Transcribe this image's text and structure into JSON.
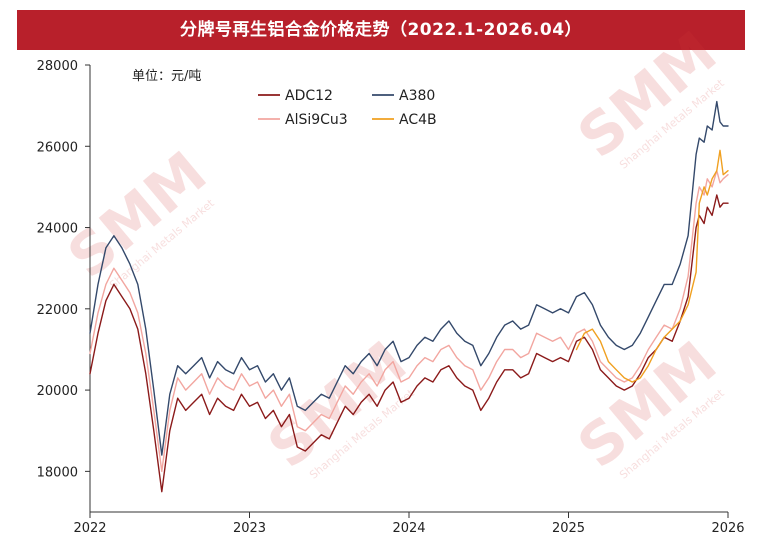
{
  "title": "分牌号再生铝合金价格走势（2022.1-2026.04）",
  "watermark": {
    "logo": "SMM",
    "subtitle": "Shanghai Metals Market",
    "color": "#d33a3a"
  },
  "chart_data": {
    "type": "line",
    "title": "分牌号再生铝合金价格走势（2022.1-2026.04）",
    "unit_label": "单位：元/吨",
    "xlabel": "",
    "ylabel": "",
    "x_ticks": [
      "2022",
      "2023",
      "2024",
      "2025",
      "2026"
    ],
    "y_ticks": [
      "18000",
      "20000",
      "22000",
      "24000",
      "26000",
      "28000"
    ],
    "xlim": [
      2022.0,
      2026.0
    ],
    "ylim": [
      17000,
      28000
    ],
    "grid": false,
    "legend_position": "top",
    "x": [
      2022.0,
      2022.05,
      2022.1,
      2022.15,
      2022.2,
      2022.25,
      2022.3,
      2022.35,
      2022.4,
      2022.45,
      2022.5,
      2022.55,
      2022.6,
      2022.65,
      2022.7,
      2022.75,
      2022.8,
      2022.85,
      2022.9,
      2022.95,
      2023.0,
      2023.05,
      2023.1,
      2023.15,
      2023.2,
      2023.25,
      2023.3,
      2023.35,
      2023.4,
      2023.45,
      2023.5,
      2023.55,
      2023.6,
      2023.65,
      2023.7,
      2023.75,
      2023.8,
      2023.85,
      2023.9,
      2023.95,
      2024.0,
      2024.05,
      2024.1,
      2024.15,
      2024.2,
      2024.25,
      2024.3,
      2024.35,
      2024.4,
      2024.45,
      2024.5,
      2024.55,
      2024.6,
      2024.65,
      2024.7,
      2024.75,
      2024.8,
      2024.85,
      2024.9,
      2024.95,
      2025.0,
      2025.05,
      2025.1,
      2025.15,
      2025.2,
      2025.25,
      2025.3,
      2025.35,
      2025.4,
      2025.45,
      2025.5,
      2025.55,
      2025.6,
      2025.65,
      2025.7,
      2025.75,
      2025.8,
      2025.82,
      2025.85,
      2025.87,
      2025.9,
      2025.93,
      2025.95,
      2025.97,
      2026.0
    ],
    "series": [
      {
        "name": "ADC12",
        "color": "#8b1a1a",
        "values": [
          20400,
          21400,
          22200,
          22600,
          22300,
          22000,
          21500,
          20400,
          19000,
          17500,
          19000,
          19800,
          19500,
          19700,
          19900,
          19400,
          19800,
          19600,
          19500,
          19900,
          19600,
          19700,
          19300,
          19500,
          19100,
          19400,
          18600,
          18500,
          18700,
          18900,
          18800,
          19200,
          19600,
          19400,
          19700,
          19900,
          19600,
          20000,
          20200,
          19700,
          19800,
          20100,
          20300,
          20200,
          20500,
          20600,
          20300,
          20100,
          20000,
          19500,
          19800,
          20200,
          20500,
          20500,
          20300,
          20400,
          20900,
          20800,
          20700,
          20800,
          20700,
          21200,
          21300,
          21000,
          20500,
          20300,
          20100,
          20000,
          20100,
          20400,
          20800,
          21000,
          21300,
          21200,
          21700,
          22300,
          24000,
          24300,
          24100,
          24500,
          24300,
          24800,
          24500,
          24600,
          24600
        ]
      },
      {
        "name": "AlSi9Cu3",
        "color": "#f2a6a0",
        "values": [
          20900,
          21900,
          22600,
          23000,
          22700,
          22400,
          21900,
          20900,
          19500,
          18000,
          19500,
          20300,
          20000,
          20200,
          20400,
          19900,
          20300,
          20100,
          20000,
          20400,
          20100,
          20200,
          19800,
          20000,
          19600,
          19900,
          19100,
          19000,
          19200,
          19400,
          19300,
          19700,
          20100,
          19900,
          20200,
          20400,
          20100,
          20500,
          20700,
          20200,
          20300,
          20600,
          20800,
          20700,
          21000,
          21100,
          20800,
          20600,
          20500,
          20000,
          20300,
          20700,
          21000,
          21000,
          20800,
          20900,
          21400,
          21300,
          21200,
          21300,
          21000,
          21400,
          21500,
          21200,
          20700,
          20500,
          20300,
          20200,
          20300,
          20600,
          21000,
          21300,
          21600,
          21500,
          22000,
          22800,
          24600,
          25000,
          24800,
          25200,
          25000,
          25400,
          25100,
          25200,
          25300
        ]
      },
      {
        "name": "A380",
        "color": "#34496b",
        "values": [
          21400,
          22600,
          23500,
          23800,
          23500,
          23100,
          22600,
          21500,
          20000,
          18400,
          19900,
          20600,
          20400,
          20600,
          20800,
          20300,
          20700,
          20500,
          20400,
          20800,
          20500,
          20600,
          20200,
          20400,
          20000,
          20300,
          19600,
          19500,
          19700,
          19900,
          19800,
          20200,
          20600,
          20400,
          20700,
          20900,
          20600,
          21000,
          21200,
          20700,
          20800,
          21100,
          21300,
          21200,
          21500,
          21700,
          21400,
          21200,
          21100,
          20600,
          20900,
          21300,
          21600,
          21700,
          21500,
          21600,
          22100,
          22000,
          21900,
          22000,
          21900,
          22300,
          22400,
          22100,
          21600,
          21300,
          21100,
          21000,
          21100,
          21400,
          21800,
          22200,
          22600,
          22600,
          23100,
          23800,
          25800,
          26200,
          26100,
          26500,
          26400,
          27100,
          26600,
          26500,
          26500
        ]
      },
      {
        "name": "AC4B",
        "color": "#f0a020",
        "values": [
          null,
          null,
          null,
          null,
          null,
          null,
          null,
          null,
          null,
          null,
          null,
          null,
          null,
          null,
          null,
          null,
          null,
          null,
          null,
          null,
          null,
          null,
          null,
          null,
          null,
          null,
          null,
          null,
          null,
          null,
          null,
          null,
          null,
          null,
          null,
          null,
          null,
          null,
          null,
          null,
          null,
          null,
          null,
          null,
          null,
          null,
          null,
          null,
          null,
          null,
          null,
          null,
          null,
          null,
          null,
          null,
          null,
          null,
          null,
          null,
          null,
          21000,
          21400,
          21500,
          21200,
          20700,
          20500,
          20300,
          20200,
          20300,
          20600,
          21000,
          21300,
          21500,
          21700,
          22100,
          22900,
          24600,
          25000,
          24800,
          25200,
          25400,
          25900,
          25300,
          25400
        ]
      }
    ]
  }
}
